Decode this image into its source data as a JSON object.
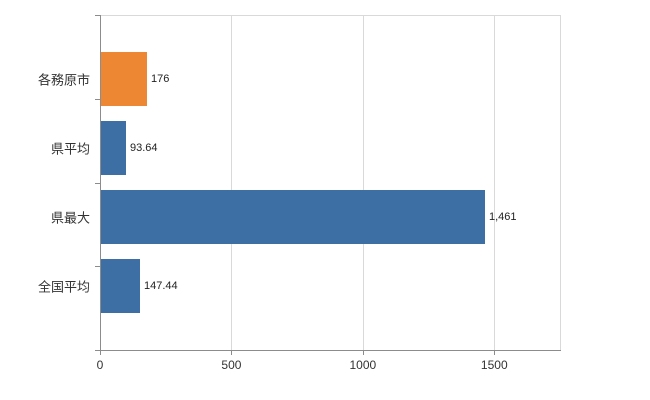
{
  "chart_data": {
    "type": "bar",
    "orientation": "horizontal",
    "title": "",
    "xlabel": "",
    "ylabel": "",
    "categories": [
      "各務原市",
      "県平均",
      "県最大",
      "全国平均"
    ],
    "values": [
      176,
      93.64,
      1461,
      147.44
    ],
    "value_labels": [
      "176",
      "93.64",
      "1,461",
      "147.44"
    ],
    "bar_colors": [
      "#ed8733",
      "#3e6fa4",
      "#3e6fa4",
      "#3e6fa4"
    ],
    "xlim": [
      0,
      1750
    ],
    "x_ticks": [
      0,
      500,
      1000,
      1500
    ],
    "x_tick_labels": [
      "0",
      "500",
      "1000",
      "1500"
    ],
    "grid": true,
    "legend": false
  },
  "colors": {
    "background": "#ffffff",
    "grid": "#d9d9d9",
    "axis": "#8c8c8c",
    "text": "#333333"
  }
}
